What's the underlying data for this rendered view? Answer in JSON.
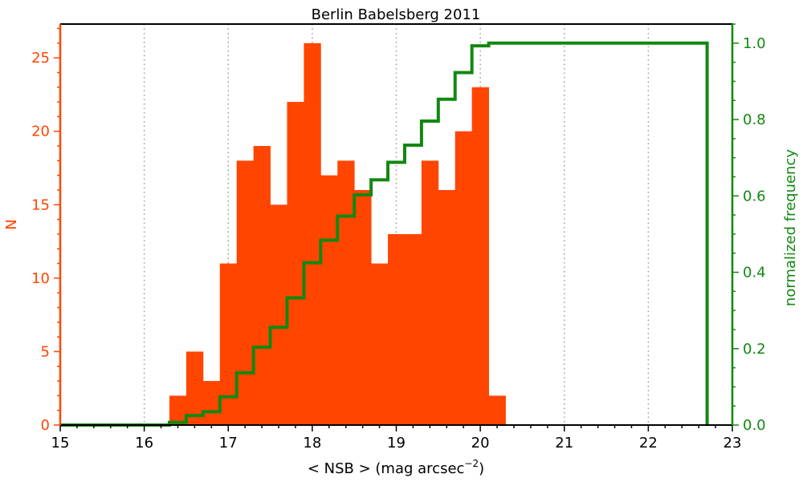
{
  "chart_data": {
    "type": "bar",
    "title": "Berlin Babelsberg 2011",
    "xlabel": "< NSB >  (mag arcsec",
    "xlabel_exp": "−2",
    "xlabel_close": ")",
    "ylabel": "N",
    "ylabel_right": "normalized frequency",
    "xlim": [
      15,
      23
    ],
    "ylim": [
      0,
      27.3
    ],
    "ylim_right": [
      0,
      1.05
    ],
    "x_ticks": [
      15,
      16,
      17,
      18,
      19,
      20,
      21,
      22,
      23
    ],
    "x_tick_labels": [
      "15",
      "16",
      "17",
      "18",
      "19",
      "20",
      "21",
      "22",
      "23"
    ],
    "y_ticks": [
      0,
      5,
      10,
      15,
      20,
      25
    ],
    "y_tick_labels": [
      "0",
      "5",
      "10",
      "15",
      "20",
      "25"
    ],
    "y_ticks_right": [
      0.0,
      0.2,
      0.4,
      0.6,
      0.8,
      1.0
    ],
    "y_tick_labels_right": [
      "0.0",
      "0.2",
      "0.4",
      "0.6",
      "0.8",
      "1.0"
    ],
    "grid": "vertical-dotted",
    "histogram": {
      "bin_width": 0.2,
      "bin_edges_start": 16.3,
      "counts": [
        2,
        5,
        3,
        11,
        18,
        19,
        15,
        22,
        26,
        17,
        18,
        16,
        11,
        13,
        13,
        18,
        16,
        20,
        23,
        2
      ]
    },
    "cumulative": {
      "x": [
        15.0,
        16.3,
        16.3,
        16.5,
        16.5,
        16.7,
        16.7,
        16.9,
        16.9,
        17.1,
        17.1,
        17.3,
        17.3,
        17.5,
        17.5,
        17.7,
        17.7,
        17.9,
        17.9,
        18.1,
        18.1,
        18.3,
        18.3,
        18.5,
        18.5,
        18.7,
        18.7,
        18.9,
        18.9,
        19.1,
        19.1,
        19.3,
        19.3,
        19.5,
        19.5,
        19.7,
        19.7,
        19.9,
        19.9,
        20.1,
        20.1,
        20.3,
        20.3,
        22.7,
        22.7
      ],
      "y": [
        0.0,
        0.0,
        0.007,
        0.007,
        0.025,
        0.025,
        0.035,
        0.035,
        0.074,
        0.074,
        0.137,
        0.137,
        0.204,
        0.204,
        0.256,
        0.256,
        0.333,
        0.333,
        0.425,
        0.425,
        0.484,
        0.484,
        0.547,
        0.547,
        0.603,
        0.603,
        0.642,
        0.642,
        0.688,
        0.688,
        0.733,
        0.733,
        0.796,
        0.796,
        0.853,
        0.853,
        0.923,
        0.923,
        0.993,
        0.993,
        1.0,
        1.0,
        1.0,
        1.0,
        0.0
      ]
    },
    "colors": {
      "bars": "#ff4500",
      "left_axis": "#ff4500",
      "cumulative": "#118811",
      "right_axis": "#118811",
      "grid": "#999999"
    }
  }
}
